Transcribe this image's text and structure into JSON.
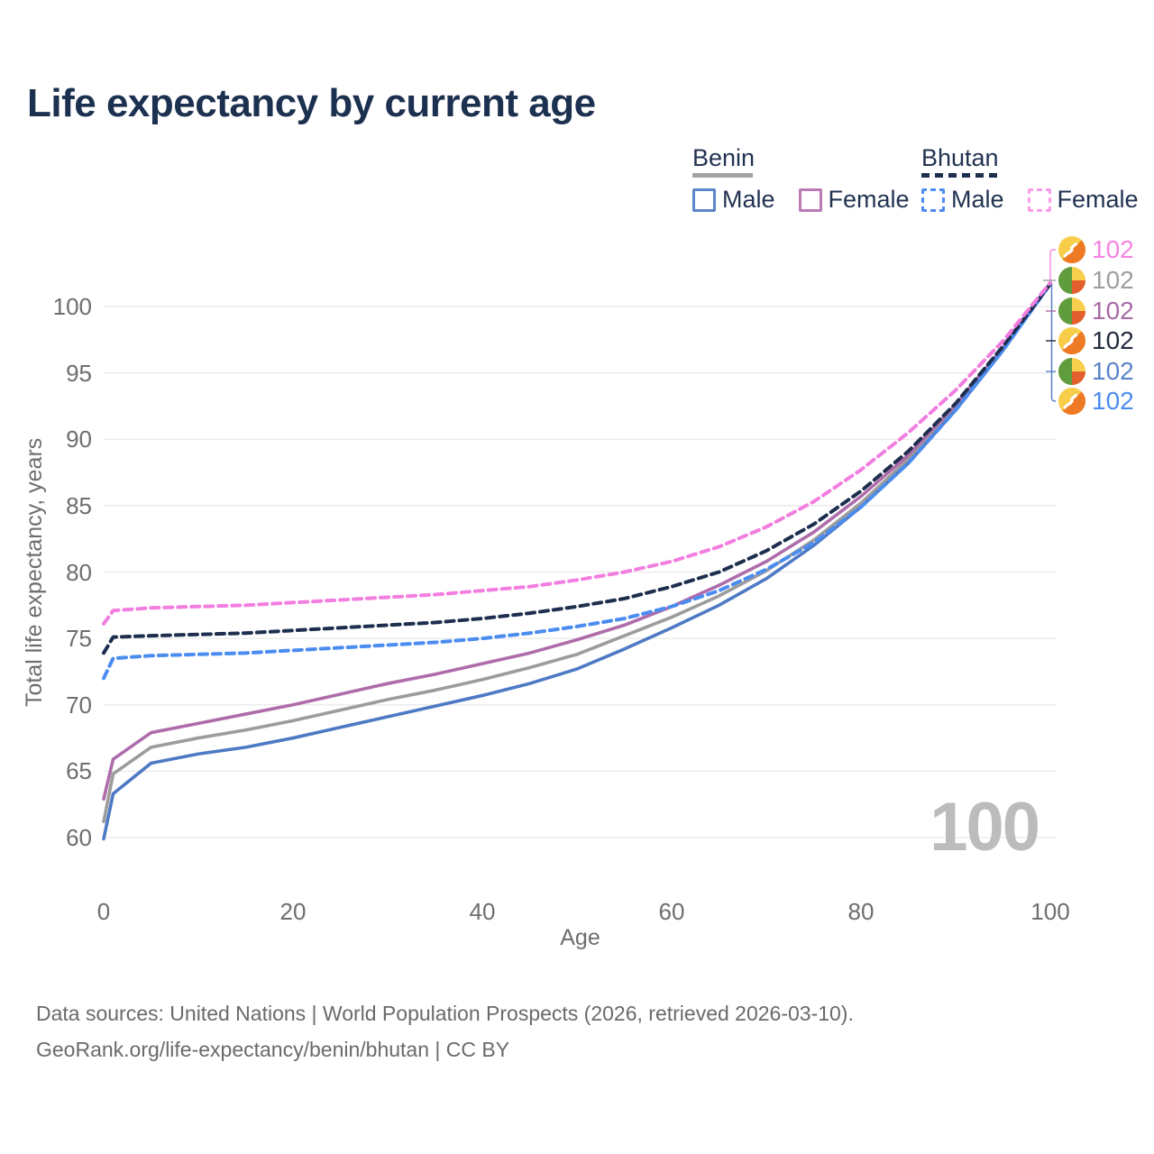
{
  "title": "Life expectancy by current age",
  "legend": {
    "groups": [
      {
        "country": "Benin",
        "line_style": "solid",
        "underline_color": "#a3a3a3",
        "items": [
          {
            "label": "Male",
            "color": "#5b86c9",
            "dash": false
          },
          {
            "label": "Female",
            "color": "#bb79b5",
            "dash": false
          }
        ]
      },
      {
        "country": "Bhutan",
        "line_style": "dashed",
        "underline_color": "#1d2e4e",
        "items": [
          {
            "label": "Male",
            "color": "#4d8cf0",
            "dash": true
          },
          {
            "label": "Female",
            "color": "#fb9ce8",
            "dash": true
          }
        ]
      }
    ]
  },
  "chart_data": {
    "type": "line",
    "title": "Life expectancy by current age",
    "xlabel": "Age",
    "ylabel": "Total life expectancy, years",
    "xlim": [
      0,
      100
    ],
    "ylim": [
      58.5,
      103
    ],
    "xticks": [
      0,
      20,
      40,
      60,
      80,
      100
    ],
    "yticks": [
      60,
      65,
      70,
      75,
      80,
      85,
      90,
      95,
      100
    ],
    "grid": "horizontal",
    "legend_position": "top-right",
    "ages": [
      0,
      1,
      5,
      10,
      15,
      20,
      25,
      30,
      35,
      40,
      45,
      50,
      55,
      60,
      65,
      70,
      75,
      80,
      85,
      90,
      95,
      100
    ],
    "series": [
      {
        "name": "Benin All",
        "country": "Benin",
        "sex": "all",
        "color": "#9c9c9c",
        "dash": false,
        "values": [
          61.2,
          64.8,
          66.8,
          67.5,
          68.1,
          68.8,
          69.6,
          70.4,
          71.1,
          71.9,
          72.8,
          73.8,
          75.2,
          76.6,
          78.2,
          80.1,
          82.4,
          85.2,
          88.5,
          92.4,
          96.8,
          101.7
        ]
      },
      {
        "name": "Benin Female",
        "country": "Benin",
        "sex": "female",
        "color": "#ae6cab",
        "dash": false,
        "values": [
          62.9,
          65.9,
          67.9,
          68.6,
          69.3,
          70.0,
          70.8,
          71.6,
          72.3,
          73.1,
          73.9,
          74.9,
          76.0,
          77.4,
          79.0,
          80.8,
          83.0,
          85.7,
          88.8,
          92.6,
          96.9,
          101.7
        ]
      },
      {
        "name": "Benin Male",
        "country": "Benin",
        "sex": "male",
        "color": "#4e79c4",
        "dash": false,
        "values": [
          59.9,
          63.3,
          65.6,
          66.3,
          66.8,
          67.5,
          68.3,
          69.1,
          69.9,
          70.7,
          71.6,
          72.7,
          74.2,
          75.8,
          77.5,
          79.5,
          82.0,
          84.9,
          88.2,
          92.2,
          96.7,
          101.7
        ]
      },
      {
        "name": "Bhutan Male",
        "country": "Bhutan",
        "sex": "male",
        "color": "#4a8cf0",
        "dash": true,
        "values": [
          72.0,
          73.5,
          73.7,
          73.8,
          73.9,
          74.1,
          74.3,
          74.5,
          74.7,
          75.0,
          75.4,
          75.9,
          76.5,
          77.4,
          78.6,
          80.2,
          82.2,
          84.9,
          88.2,
          92.2,
          96.7,
          101.7
        ]
      },
      {
        "name": "Bhutan All",
        "country": "Bhutan",
        "sex": "all",
        "color": "#1d2e4e",
        "dash": true,
        "values": [
          73.9,
          75.1,
          75.2,
          75.3,
          75.4,
          75.6,
          75.8,
          76.0,
          76.2,
          76.5,
          76.9,
          77.4,
          78.0,
          78.9,
          80.0,
          81.6,
          83.6,
          86.1,
          89.1,
          92.7,
          97.0,
          101.7
        ]
      },
      {
        "name": "Bhutan Female",
        "country": "Bhutan",
        "sex": "female",
        "color": "#f27ee0",
        "dash": true,
        "values": [
          76.1,
          77.1,
          77.3,
          77.4,
          77.5,
          77.7,
          77.9,
          78.1,
          78.3,
          78.6,
          78.9,
          79.4,
          80.0,
          80.8,
          81.9,
          83.4,
          85.3,
          87.7,
          90.5,
          93.7,
          97.4,
          101.8
        ]
      }
    ]
  },
  "end_labels": [
    {
      "series": "Bhutan Female",
      "flag": "bhutan",
      "color": "#f584e2",
      "value": "102"
    },
    {
      "series": "Benin All",
      "flag": "benin",
      "color": "#9e9e9e",
      "value": "102"
    },
    {
      "series": "Benin Female",
      "flag": "benin",
      "color": "#a86ba6",
      "value": "102"
    },
    {
      "series": "Bhutan All",
      "flag": "bhutan",
      "color": "#222a3d",
      "value": "102"
    },
    {
      "series": "Benin Male",
      "flag": "benin",
      "color": "#5b84c8",
      "value": "102"
    },
    {
      "series": "Bhutan Male",
      "flag": "bhutan",
      "color": "#4d8cf0",
      "value": "102"
    }
  ],
  "watermark": "100",
  "footer": {
    "line1": "Data sources: United Nations | World Population Prospects (2026, retrieved 2026-03-10).",
    "line2": "GeoRank.org/life-expectancy/benin/bhutan | CC BY"
  }
}
